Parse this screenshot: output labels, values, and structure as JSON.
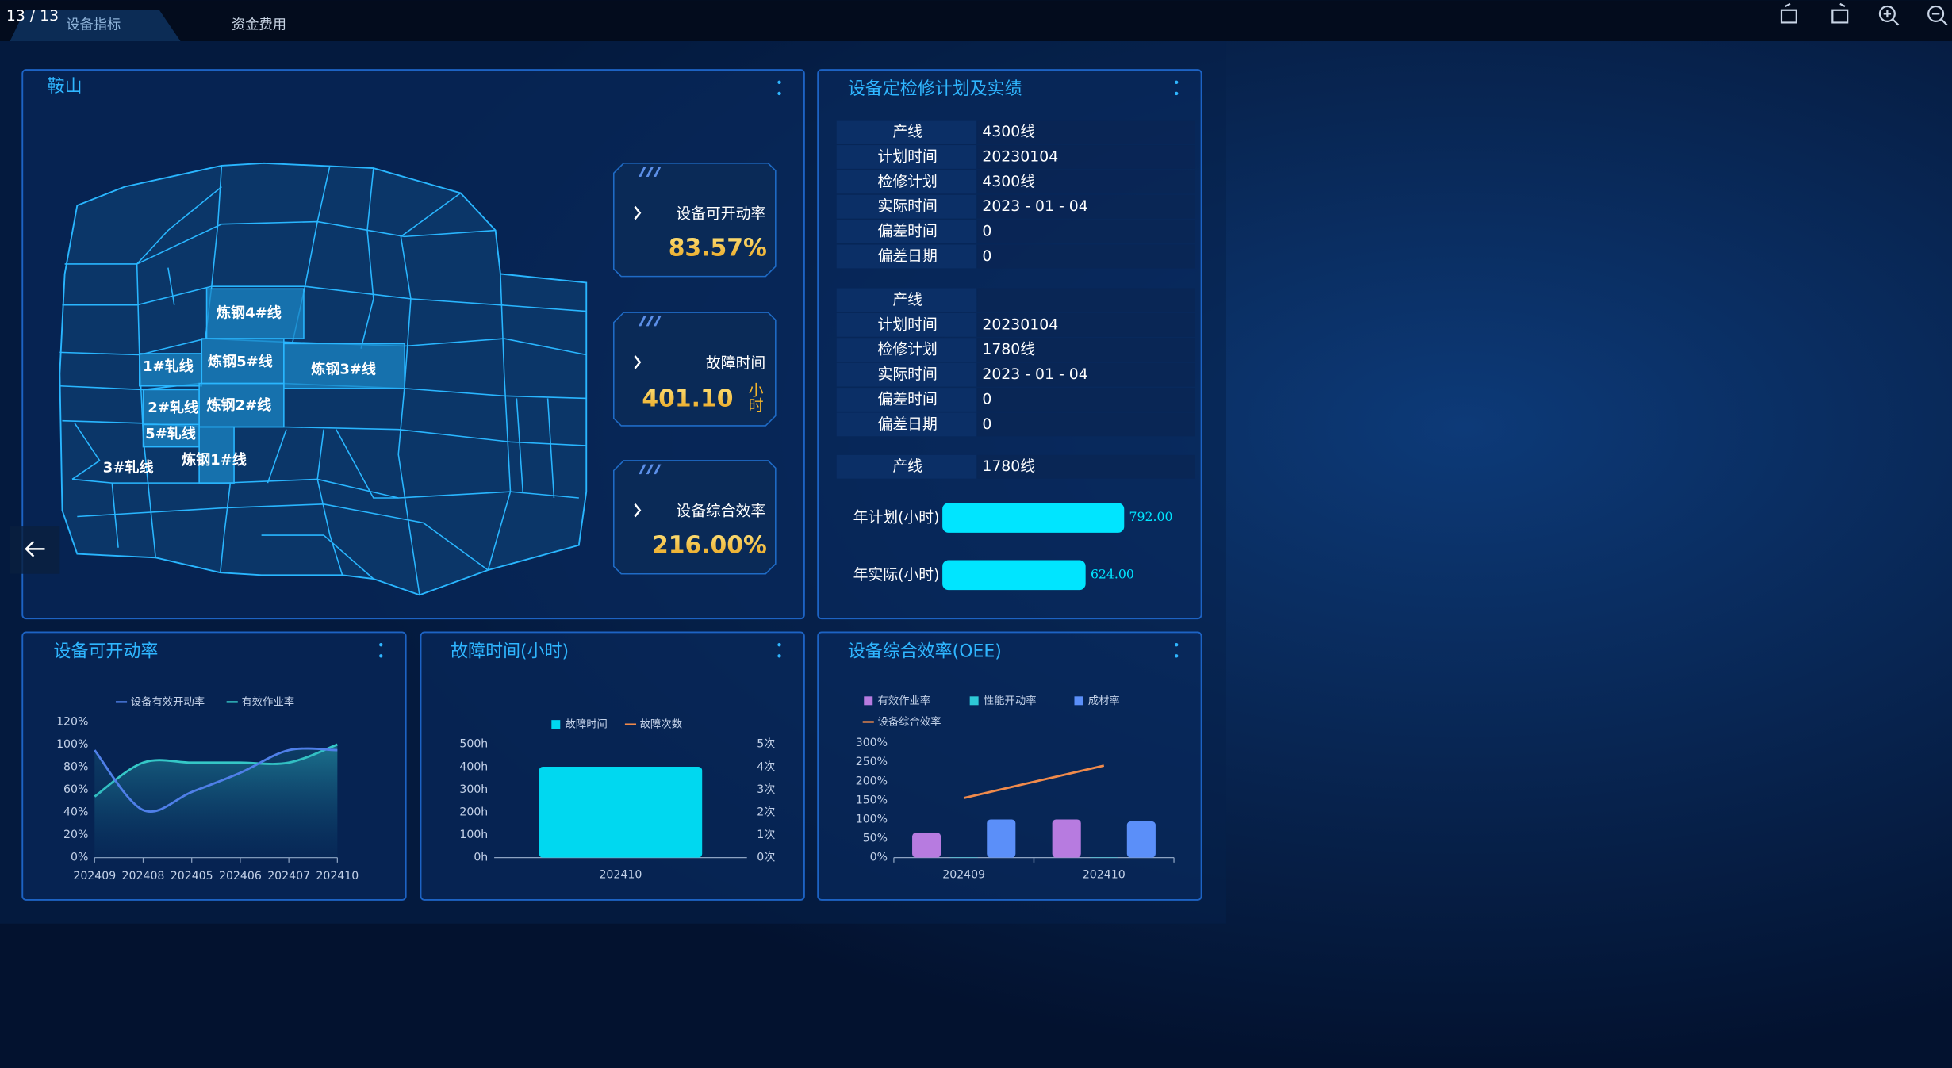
{
  "toolbar": {
    "page": "13 / 13",
    "tabs": [
      "设备指标",
      "资金费用"
    ]
  },
  "map_panel": {
    "title": "鞍山",
    "regions": [
      "炼钢4#线",
      "1#轧线",
      "炼钢5#线",
      "炼钢3#线",
      "2#轧线",
      "炼钢2#线",
      "5#轧线",
      "3#轧线",
      "炼钢1#线"
    ],
    "kpis": [
      {
        "label": "设备可开动率",
        "value": "83.57",
        "unit": "%"
      },
      {
        "label": "故障时间",
        "value": "401.10",
        "unit": "小时"
      },
      {
        "label": "设备综合效率",
        "value": "216.00",
        "unit": "%"
      }
    ]
  },
  "maintenance": {
    "title": "设备定检修计划及实绩",
    "sections": [
      {
        "rows": [
          [
            "产线",
            "4300线"
          ],
          [
            "计划时间",
            "20230104"
          ],
          [
            "检修计划",
            "4300线"
          ],
          [
            "实际时间",
            "2023 - 01 - 04"
          ],
          [
            "偏差时间",
            "0"
          ],
          [
            "偏差日期",
            "0"
          ]
        ]
      },
      {
        "rows": [
          [
            "产线",
            null
          ],
          [
            "计划时间",
            "20230104"
          ],
          [
            "检修计划",
            "1780线"
          ],
          [
            "实际时间",
            "2023 - 01 - 04"
          ],
          [
            "偏差时间",
            "0"
          ],
          [
            "偏差日期",
            "0"
          ]
        ]
      },
      {
        "rows": [
          [
            "产线",
            "1780线"
          ]
        ]
      }
    ]
  },
  "chart_data": [
    {
      "type": "hbar",
      "categories": [
        "年计划(小时)",
        "年实际(小时)"
      ],
      "values": [
        792,
        624
      ],
      "value_labels": [
        "792.00",
        "624.00"
      ],
      "color": "#00e5ff"
    },
    {
      "type": "line",
      "title": "设备可开动率",
      "categories": [
        "202409",
        "202408",
        "202405",
        "202406",
        "202407",
        "202410"
      ],
      "series": [
        {
          "name": "设备有效开动率",
          "color": "#4f7fe8",
          "values": [
            95,
            42,
            58,
            75,
            95,
            95
          ]
        },
        {
          "name": "有效作业率",
          "color": "#35c7c7",
          "values": [
            54,
            84,
            84,
            84,
            84,
            100
          ]
        }
      ],
      "ylim": [
        0,
        120
      ],
      "yticks": [
        {
          "value": 0,
          "label": "0%"
        },
        {
          "value": 20,
          "label": "20%"
        },
        {
          "value": 40,
          "label": "40%"
        },
        {
          "value": 60,
          "label": "60%"
        },
        {
          "value": 80,
          "label": "80%"
        },
        {
          "value": 100,
          "label": "100%"
        },
        {
          "value": 120,
          "label": "120%"
        }
      ]
    },
    {
      "type": "bar",
      "title": "故障时间(小时)",
      "categories": [
        "202410"
      ],
      "series": [
        {
          "name": "故障时间",
          "color": "#00d8f0",
          "values": [
            401.1
          ]
        },
        {
          "name": "故障次数",
          "color": "#f08a4b",
          "type": "line",
          "axis": "y2",
          "values": [
            null
          ]
        }
      ],
      "ylim": [
        0,
        500
      ],
      "yticks": [
        {
          "value": 0,
          "label": "0h"
        },
        {
          "value": 100,
          "label": "100h"
        },
        {
          "value": 200,
          "label": "200h"
        },
        {
          "value": 300,
          "label": "300h"
        },
        {
          "value": 400,
          "label": "400h"
        },
        {
          "value": 500,
          "label": "500h"
        }
      ],
      "y2lim": [
        0,
        5
      ],
      "y2ticks": [
        {
          "value": 0,
          "label": "0次"
        },
        {
          "value": 1,
          "label": "1次"
        },
        {
          "value": 2,
          "label": "2次"
        },
        {
          "value": 3,
          "label": "3次"
        },
        {
          "value": 4,
          "label": "4次"
        },
        {
          "value": 5,
          "label": "5次"
        }
      ]
    },
    {
      "type": "bar",
      "title": "设备综合效率(OEE)",
      "categories": [
        "202409",
        "202410"
      ],
      "series": [
        {
          "name": "有效作业率",
          "color": "#b77be0",
          "values": [
            65,
            100
          ]
        },
        {
          "name": "性能开动率",
          "color": "#2ec9d6",
          "values": [
            1,
            1
          ]
        },
        {
          "name": "成材率",
          "color": "#5b8ff9",
          "values": [
            100,
            95
          ]
        },
        {
          "name": "设备综合效率",
          "color": "#f08a4b",
          "type": "line",
          "values": [
            156,
            241
          ]
        }
      ],
      "ylim": [
        0,
        300
      ],
      "yticks": [
        {
          "value": 0,
          "label": "0%"
        },
        {
          "value": 50,
          "label": "50%"
        },
        {
          "value": 100,
          "label": "100%"
        },
        {
          "value": 150,
          "label": "150%"
        },
        {
          "value": 200,
          "label": "200%"
        },
        {
          "value": 250,
          "label": "250%"
        },
        {
          "value": 300,
          "label": "300%"
        }
      ]
    }
  ]
}
